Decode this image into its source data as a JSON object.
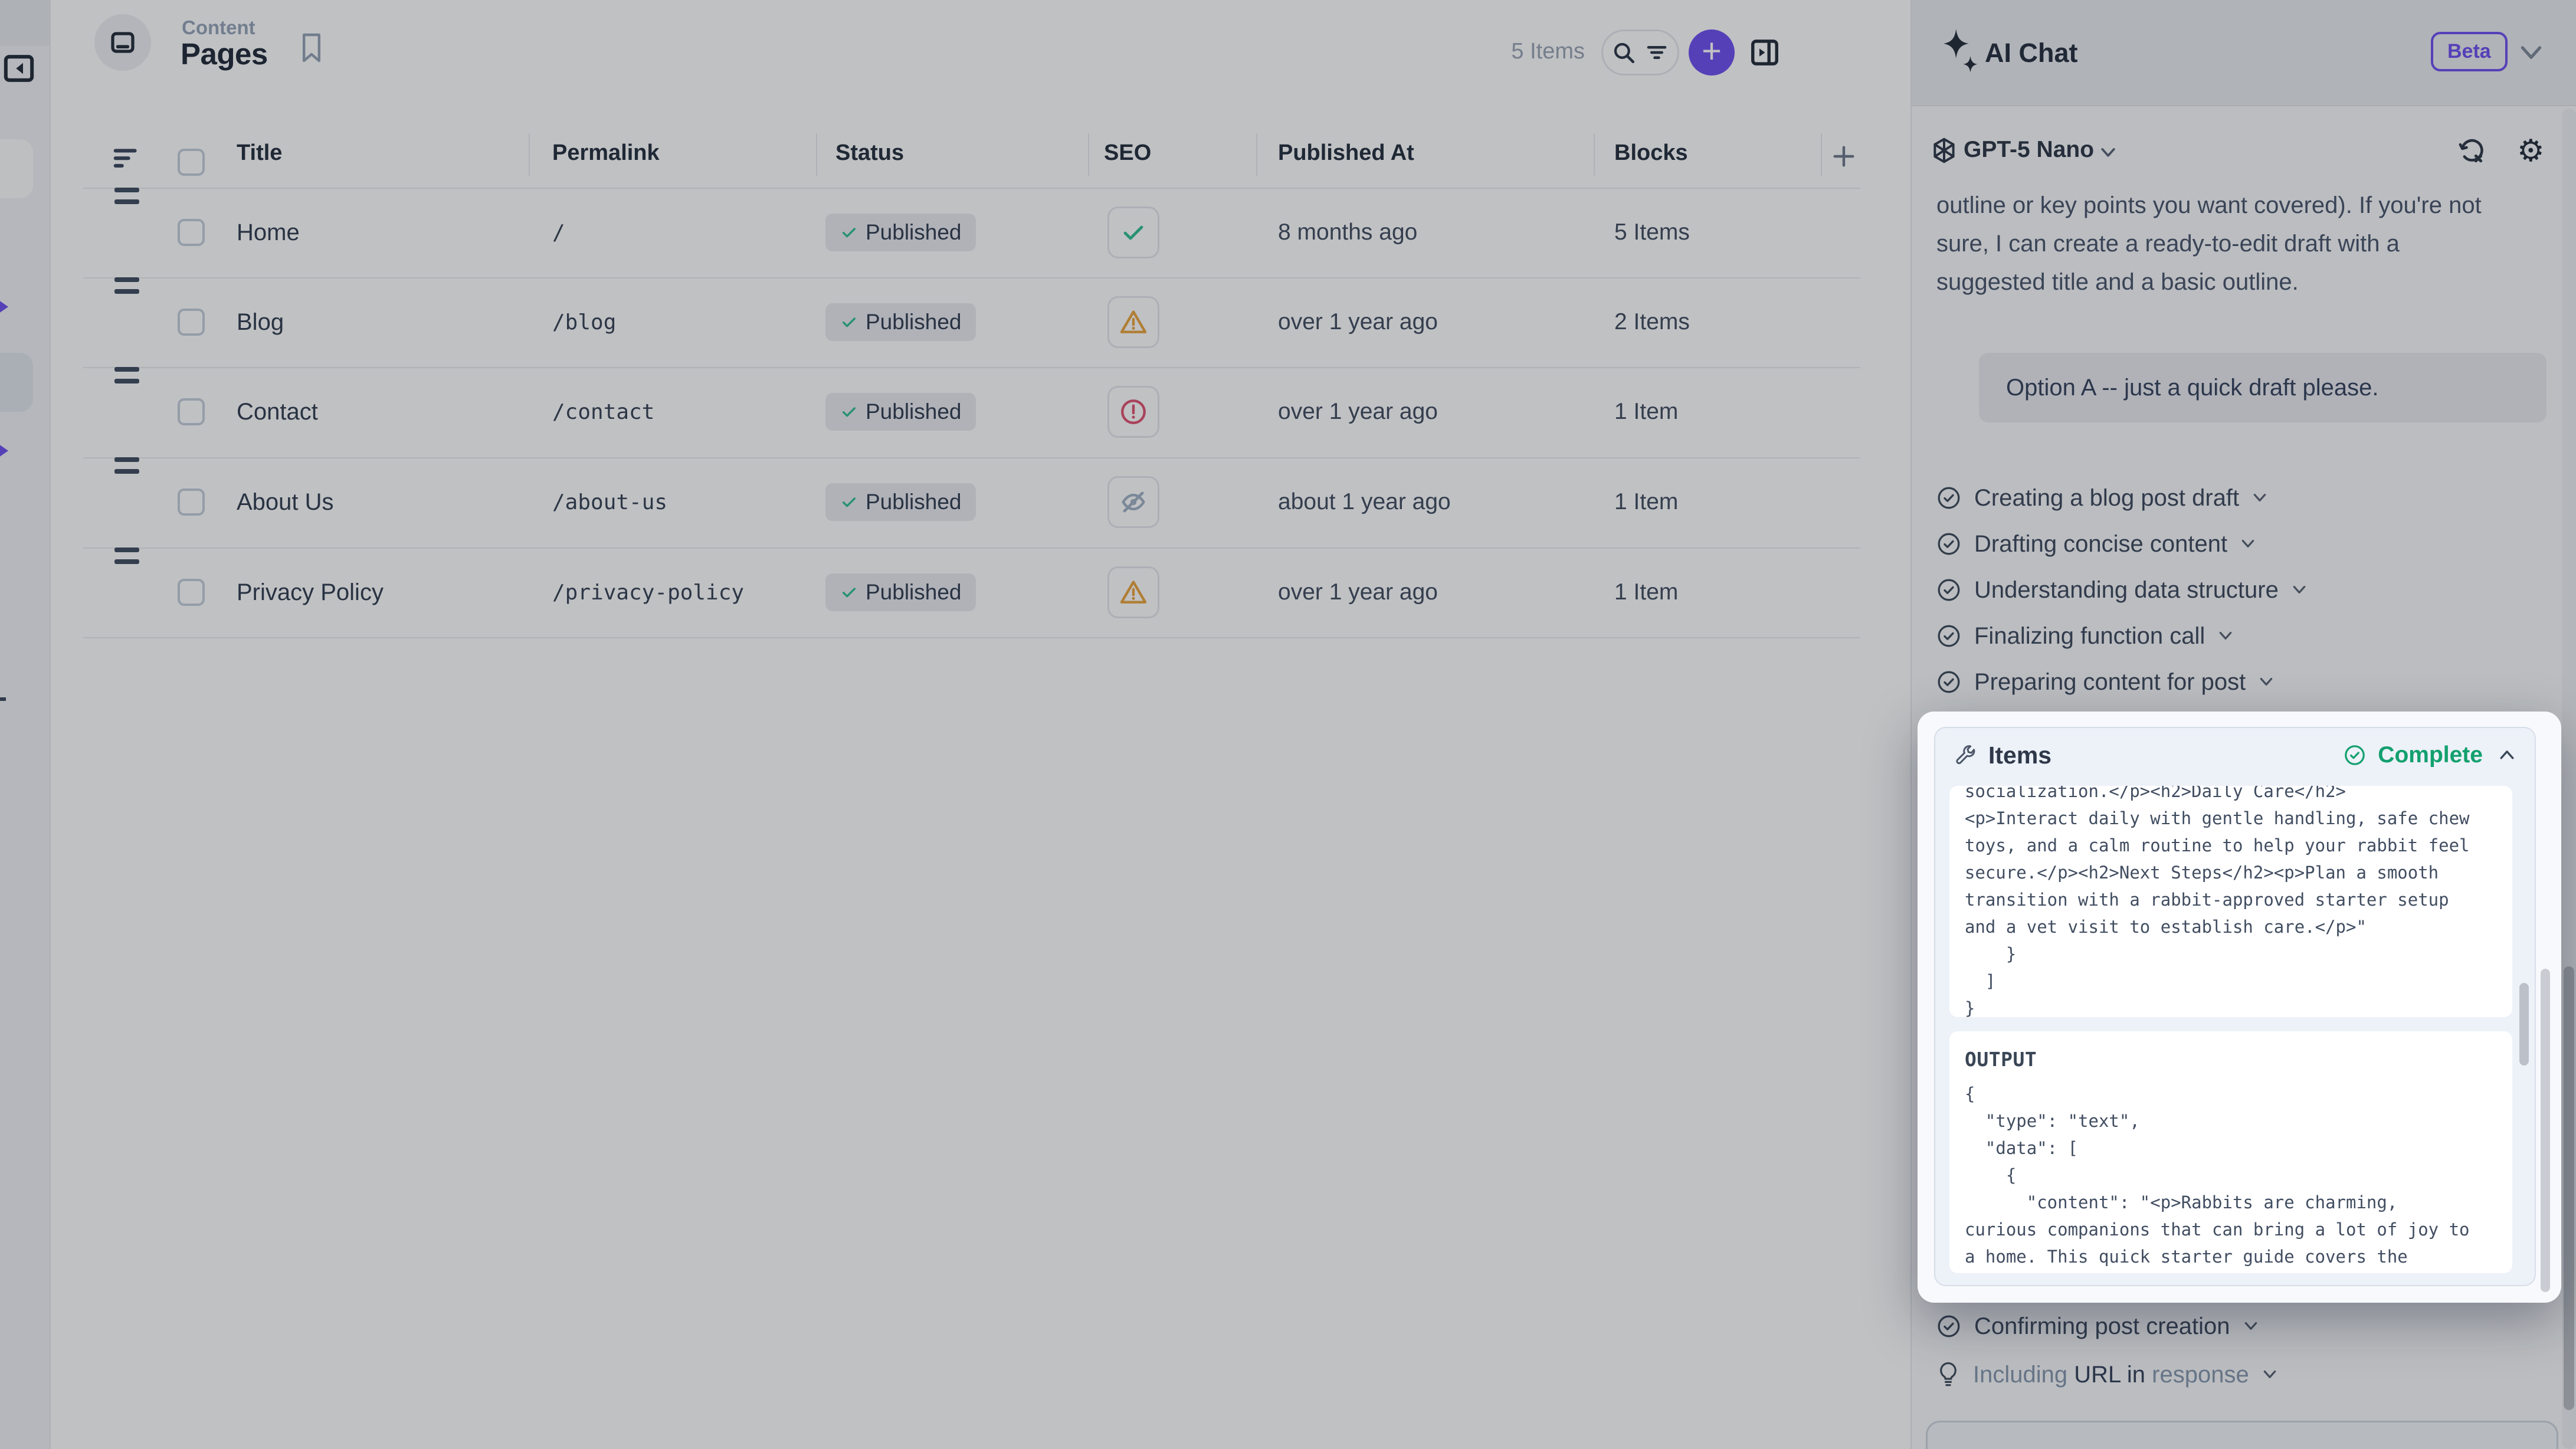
{
  "content_header": {
    "section": "Content",
    "title": "Pages",
    "items_count": "5 Items"
  },
  "table": {
    "columns": [
      "Title",
      "Permalink",
      "Status",
      "SEO",
      "Published At",
      "Blocks"
    ],
    "rows": [
      {
        "title": "Home",
        "permalink": "/",
        "status": "Published",
        "seo": "check",
        "published_at": "8 months ago",
        "blocks": "5 Items"
      },
      {
        "title": "Blog",
        "permalink": "/blog",
        "status": "Published",
        "seo": "warning",
        "published_at": "over 1 year ago",
        "blocks": "2 Items"
      },
      {
        "title": "Contact",
        "permalink": "/contact",
        "status": "Published",
        "seo": "error",
        "published_at": "over 1 year ago",
        "blocks": "1 Item"
      },
      {
        "title": "About Us",
        "permalink": "/about-us",
        "status": "Published",
        "seo": "hidden",
        "published_at": "about 1 year ago",
        "blocks": "1 Item"
      },
      {
        "title": "Privacy Policy",
        "permalink": "/privacy-policy",
        "status": "Published",
        "seo": "warning",
        "published_at": "over 1 year ago",
        "blocks": "1 Item"
      }
    ]
  },
  "ai_panel": {
    "title": "AI Chat",
    "beta": "Beta",
    "model": "GPT-5 Nano",
    "assistant_text": "outline or key points you want covered). If you're not\nsure, I can create a ready-to-edit draft with a\nsuggested title and a basic outline.",
    "user_message": "Option A -- just a quick draft please.",
    "steps": [
      "Creating a blog post draft",
      "Drafting concise content",
      "Understanding data structure",
      "Finalizing function call",
      "Preparing content for post"
    ],
    "post_steps": {
      "confirming": "Confirming post creation",
      "pending": {
        "p1": "Including",
        "p2": "URL in",
        "p3": "response"
      }
    },
    "popup": {
      "title": "Items",
      "status": "Complete",
      "input_code": "socialization.</p><h2>Daily Care</h2>\n<p>Interact daily with gentle handling, safe chew\ntoys, and a calm routine to help your rabbit feel\nsecure.</p><h2>Next Steps</h2><p>Plan a smooth\ntransition with a rabbit-approved starter setup\nand a vet visit to establish care.</p>\"\n    }\n  ]\n}",
      "output_label": "OUTPUT",
      "output_code": "{\n  \"type\": \"text\",\n  \"data\": [\n    {\n      \"content\": \"<p>Rabbits are charming,\ncurious companions that can bring a lot of joy to\na home. This quick starter guide covers the"
    }
  },
  "colors": {
    "accent": "#6C4DF0",
    "status_green": "#2FBE8F",
    "complete_green": "#12A06E",
    "warning_amber": "#E9A23B",
    "error_red": "#E0506E",
    "hidden_gray": "#9FB0C4"
  }
}
